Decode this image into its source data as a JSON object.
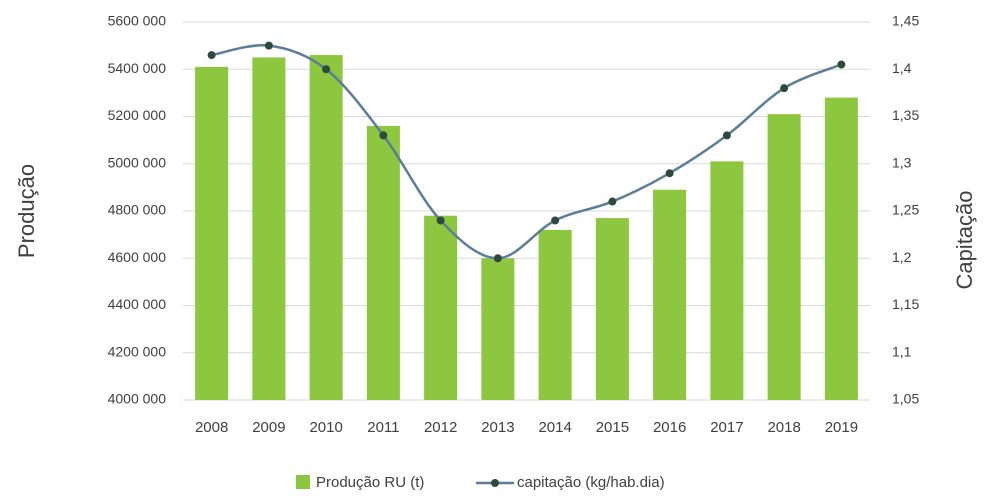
{
  "chart_data": {
    "type": "bar_line",
    "categories": [
      "2008",
      "2009",
      "2010",
      "2011",
      "2012",
      "2013",
      "2014",
      "2015",
      "2016",
      "2017",
      "2018",
      "2019"
    ],
    "ylabel": "Produção",
    "y2label": "Capitação",
    "series": [
      {
        "name": "Produção RU (t)",
        "type": "bar",
        "color": "#8dc63f",
        "values": [
          5410000,
          5450000,
          5460000,
          5160000,
          4780000,
          4600000,
          4720000,
          4770000,
          4890000,
          5010000,
          5210000,
          5280000
        ]
      },
      {
        "name": "capitação (kg/hab.dia)",
        "type": "line",
        "axis": "y2",
        "color": "#5b7d99",
        "marker_color": "#2e4a3c",
        "values": [
          1.415,
          1.425,
          1.4,
          1.33,
          1.24,
          1.2,
          1.24,
          1.26,
          1.29,
          1.33,
          1.38,
          1.405
        ]
      }
    ],
    "ylim": [
      4000000,
      5600000
    ],
    "yticks": [
      {
        "value": 4000000,
        "label": "4000 000"
      },
      {
        "value": 4200000,
        "label": "4200 000"
      },
      {
        "value": 4400000,
        "label": "4400 000"
      },
      {
        "value": 4600000,
        "label": "4600 000"
      },
      {
        "value": 4800000,
        "label": "4800 000"
      },
      {
        "value": 5000000,
        "label": "5000 000"
      },
      {
        "value": 5200000,
        "label": "5200 000"
      },
      {
        "value": 5400000,
        "label": "5400 000"
      },
      {
        "value": 5600000,
        "label": "5600 000"
      }
    ],
    "y2lim": [
      1.05,
      1.45
    ],
    "y2ticks": [
      {
        "value": 1.05,
        "label": "1,05"
      },
      {
        "value": 1.1,
        "label": "1,1"
      },
      {
        "value": 1.15,
        "label": "1,15"
      },
      {
        "value": 1.2,
        "label": "1,2"
      },
      {
        "value": 1.25,
        "label": "1,25"
      },
      {
        "value": 1.3,
        "label": "1,3"
      },
      {
        "value": 1.35,
        "label": "1,35"
      },
      {
        "value": 1.4,
        "label": "1,4"
      },
      {
        "value": 1.45,
        "label": "1,45"
      }
    ],
    "grid": true,
    "legend": "bottom"
  }
}
